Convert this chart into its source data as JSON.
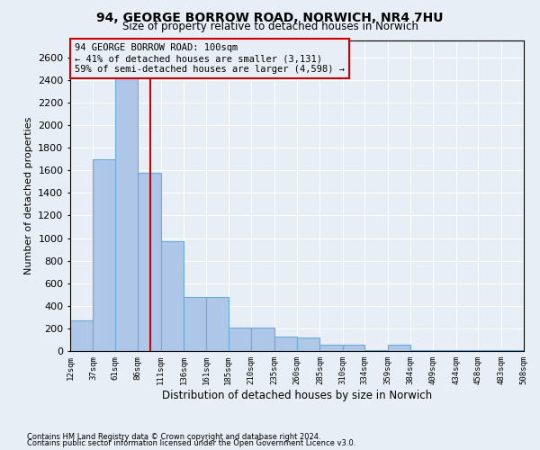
{
  "title1": "94, GEORGE BORROW ROAD, NORWICH, NR4 7HU",
  "title2": "Size of property relative to detached houses in Norwich",
  "xlabel": "Distribution of detached houses by size in Norwich",
  "ylabel": "Number of detached properties",
  "footnote1": "Contains HM Land Registry data © Crown copyright and database right 2024.",
  "footnote2": "Contains public sector information licensed under the Open Government Licence v3.0.",
  "annotation_line1": "94 GEORGE BORROW ROAD: 100sqm",
  "annotation_line2": "← 41% of detached houses are smaller (3,131)",
  "annotation_line3": "59% of semi-detached houses are larger (4,598) →",
  "property_size": 100,
  "bar_left_edges": [
    12,
    37,
    61,
    86,
    111,
    136,
    161,
    185,
    210,
    235,
    260,
    285,
    310,
    334,
    359,
    384,
    409,
    434,
    458,
    483
  ],
  "bar_widths": [
    25,
    24,
    25,
    25,
    25,
    25,
    24,
    25,
    25,
    25,
    25,
    25,
    24,
    25,
    25,
    25,
    25,
    24,
    25,
    25
  ],
  "bar_heights": [
    270,
    1700,
    2600,
    1580,
    975,
    480,
    480,
    210,
    210,
    130,
    120,
    55,
    55,
    10,
    55,
    10,
    10,
    10,
    10,
    10
  ],
  "bar_color": "#aec6e8",
  "bar_edge_color": "#6aacd6",
  "red_line_color": "#cc0000",
  "annotation_box_edge": "#cc0000",
  "background_color": "#e8eef5",
  "grid_color": "#ffffff",
  "ylim_max": 2750,
  "yticks": [
    0,
    200,
    400,
    600,
    800,
    1000,
    1200,
    1400,
    1600,
    1800,
    2000,
    2200,
    2400,
    2600
  ],
  "xtick_positions": [
    12,
    37,
    61,
    86,
    111,
    136,
    161,
    185,
    210,
    235,
    260,
    285,
    310,
    334,
    359,
    384,
    409,
    434,
    458,
    483,
    508
  ],
  "xtick_labels": [
    "12sqm",
    "37sqm",
    "61sqm",
    "86sqm",
    "111sqm",
    "136sqm",
    "161sqm",
    "185sqm",
    "210sqm",
    "235sqm",
    "260sqm",
    "285sqm",
    "310sqm",
    "334sqm",
    "359sqm",
    "384sqm",
    "409sqm",
    "434sqm",
    "458sqm",
    "483sqm",
    "508sqm"
  ],
  "xlim": [
    12,
    508
  ]
}
